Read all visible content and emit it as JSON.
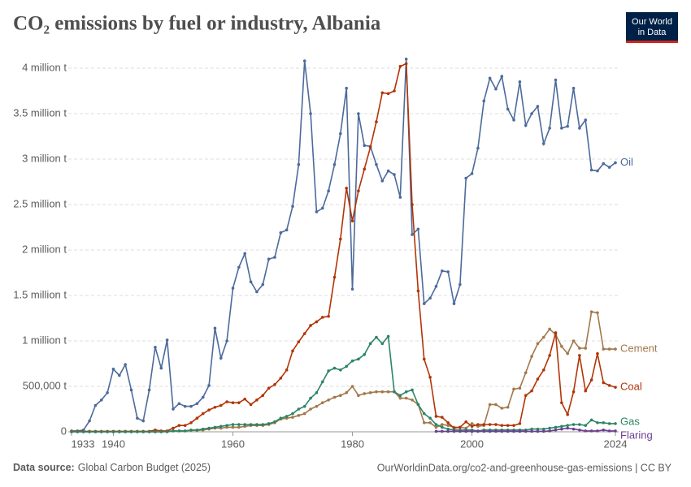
{
  "chart_data": {
    "type": "line",
    "title": "CO₂ emissions by fuel or industry, Albania",
    "logo": [
      "Our World",
      "in Data"
    ],
    "source_label": "Data source:",
    "source": "Global Carbon Budget (2025)",
    "url": "OurWorldinData.org/co2-and-greenhouse-gas-emissions | CC BY",
    "x": [
      1933,
      1934,
      1935,
      1936,
      1937,
      1938,
      1939,
      1940,
      1941,
      1942,
      1943,
      1944,
      1945,
      1946,
      1947,
      1948,
      1949,
      1950,
      1951,
      1952,
      1953,
      1954,
      1955,
      1956,
      1957,
      1958,
      1959,
      1960,
      1961,
      1962,
      1963,
      1964,
      1965,
      1966,
      1967,
      1968,
      1969,
      1970,
      1971,
      1972,
      1973,
      1974,
      1975,
      1976,
      1977,
      1978,
      1979,
      1980,
      1981,
      1982,
      1983,
      1984,
      1985,
      1986,
      1987,
      1988,
      1989,
      1990,
      1991,
      1992,
      1993,
      1994,
      1995,
      1996,
      1997,
      1998,
      1999,
      2000,
      2001,
      2002,
      2003,
      2004,
      2005,
      2006,
      2007,
      2008,
      2009,
      2010,
      2011,
      2012,
      2013,
      2014,
      2015,
      2016,
      2017,
      2018,
      2019,
      2020,
      2021,
      2022,
      2023,
      2024
    ],
    "xlim": [
      1933,
      2024
    ],
    "xticks": [
      1933,
      1940,
      1960,
      1980,
      2000,
      2024
    ],
    "ylim": [
      0,
      4000000
    ],
    "yticks": [
      0,
      {
        "value": 500000,
        "label": "500,000 t"
      },
      {
        "value": 1000000,
        "label": "1 million t"
      },
      {
        "value": 1500000,
        "label": "1.5 million t"
      },
      {
        "value": 2000000,
        "label": "2 million t"
      },
      {
        "value": 2500000,
        "label": "2.5 million t"
      },
      {
        "value": 3000000,
        "label": "3 million t"
      },
      {
        "value": 3500000,
        "label": "3.5 million t"
      },
      {
        "value": 4000000,
        "label": "4 million t"
      }
    ],
    "grid": true,
    "series": [
      {
        "name": "Oil",
        "color": "#4c6a9c",
        "values": [
          10000,
          10000,
          20000,
          120000,
          290000,
          350000,
          430000,
          690000,
          620000,
          740000,
          460000,
          150000,
          120000,
          460000,
          930000,
          700000,
          1010000,
          250000,
          310000,
          280000,
          280000,
          310000,
          380000,
          510000,
          1140000,
          810000,
          1000000,
          1580000,
          1810000,
          1960000,
          1650000,
          1540000,
          1620000,
          1900000,
          1920000,
          2190000,
          2220000,
          2480000,
          2940000,
          4080000,
          3500000,
          2420000,
          2460000,
          2650000,
          2940000,
          3280000,
          3780000,
          1570000,
          3500000,
          3150000,
          3140000,
          2940000,
          2760000,
          2870000,
          2830000,
          2580000,
          4100000,
          2170000,
          2230000,
          1410000,
          1470000,
          1600000,
          1770000,
          1760000,
          1410000,
          1620000,
          2790000,
          2840000,
          3120000,
          3640000,
          3890000,
          3770000,
          3910000,
          3550000,
          3430000,
          3850000,
          3370000,
          3500000,
          3580000,
          3170000,
          3340000,
          3870000,
          3340000,
          3360000,
          3780000,
          3340000,
          3430000,
          2880000,
          2870000,
          2950000,
          2910000,
          2960000
        ]
      },
      {
        "name": "Cement",
        "color": "#a2784a",
        "values": [
          0,
          0,
          0,
          0,
          0,
          0,
          0,
          0,
          0,
          0,
          0,
          0,
          0,
          0,
          0,
          0,
          5000,
          10000,
          10000,
          10000,
          15000,
          15000,
          20000,
          30000,
          40000,
          40000,
          50000,
          50000,
          50000,
          60000,
          70000,
          70000,
          70000,
          80000,
          100000,
          140000,
          150000,
          160000,
          180000,
          200000,
          250000,
          280000,
          320000,
          350000,
          380000,
          400000,
          430000,
          500000,
          400000,
          420000,
          430000,
          440000,
          440000,
          440000,
          440000,
          370000,
          370000,
          350000,
          300000,
          100000,
          100000,
          50000,
          80000,
          70000,
          50000,
          50000,
          40000,
          90000,
          60000,
          70000,
          300000,
          300000,
          260000,
          270000,
          470000,
          480000,
          650000,
          830000,
          970000,
          1040000,
          1130000,
          1070000,
          940000,
          860000,
          1000000,
          920000,
          920000,
          1320000,
          1310000,
          910000,
          910000,
          910000
        ]
      },
      {
        "name": "Coal",
        "color": "#b13507",
        "values": [
          5000,
          5000,
          5000,
          5000,
          5000,
          5000,
          5000,
          5000,
          5000,
          5000,
          5000,
          5000,
          5000,
          5000,
          20000,
          10000,
          10000,
          40000,
          70000,
          70000,
          100000,
          150000,
          200000,
          240000,
          270000,
          290000,
          330000,
          320000,
          320000,
          360000,
          300000,
          350000,
          400000,
          480000,
          520000,
          590000,
          680000,
          890000,
          990000,
          1080000,
          1170000,
          1210000,
          1260000,
          1270000,
          1700000,
          2120000,
          2680000,
          2320000,
          2650000,
          2890000,
          3130000,
          3410000,
          3730000,
          3720000,
          3750000,
          4020000,
          4050000,
          2500000,
          1550000,
          800000,
          600000,
          170000,
          160000,
          100000,
          40000,
          50000,
          110000,
          60000,
          80000,
          80000,
          80000,
          80000,
          70000,
          70000,
          70000,
          90000,
          400000,
          450000,
          580000,
          680000,
          840000,
          1090000,
          320000,
          190000,
          440000,
          840000,
          450000,
          570000,
          860000,
          540000,
          510000,
          490000
        ]
      },
      {
        "name": "Gas",
        "color": "#2c8465",
        "values": [
          0,
          0,
          0,
          0,
          0,
          0,
          0,
          0,
          0,
          0,
          0,
          0,
          0,
          0,
          0,
          0,
          0,
          10000,
          10000,
          10000,
          20000,
          20000,
          30000,
          40000,
          50000,
          60000,
          70000,
          80000,
          80000,
          80000,
          80000,
          80000,
          80000,
          90000,
          110000,
          150000,
          170000,
          200000,
          250000,
          280000,
          370000,
          430000,
          550000,
          670000,
          700000,
          680000,
          720000,
          780000,
          800000,
          850000,
          970000,
          1040000,
          970000,
          1050000,
          440000,
          400000,
          440000,
          460000,
          300000,
          200000,
          150000,
          80000,
          50000,
          30000,
          20000,
          20000,
          20000,
          20000,
          10000,
          20000,
          20000,
          20000,
          20000,
          20000,
          20000,
          20000,
          20000,
          30000,
          30000,
          30000,
          40000,
          50000,
          60000,
          70000,
          80000,
          80000,
          70000,
          130000,
          100000,
          100000,
          90000,
          90000
        ]
      },
      {
        "name": "Flaring",
        "color": "#6d3e91",
        "values": [
          null,
          null,
          null,
          null,
          null,
          null,
          null,
          null,
          null,
          null,
          null,
          null,
          null,
          null,
          null,
          null,
          null,
          null,
          null,
          null,
          null,
          null,
          null,
          null,
          null,
          null,
          null,
          null,
          null,
          null,
          null,
          null,
          null,
          null,
          null,
          null,
          null,
          null,
          null,
          null,
          null,
          null,
          null,
          null,
          null,
          null,
          null,
          null,
          null,
          null,
          null,
          null,
          null,
          null,
          null,
          null,
          null,
          null,
          null,
          null,
          null,
          5000,
          5000,
          5000,
          5000,
          5000,
          5000,
          5000,
          5000,
          5000,
          5000,
          5000,
          5000,
          5000,
          5000,
          5000,
          5000,
          5000,
          5000,
          5000,
          10000,
          20000,
          30000,
          40000,
          30000,
          20000,
          10000,
          10000,
          10000,
          20000,
          10000,
          10000
        ]
      }
    ]
  }
}
